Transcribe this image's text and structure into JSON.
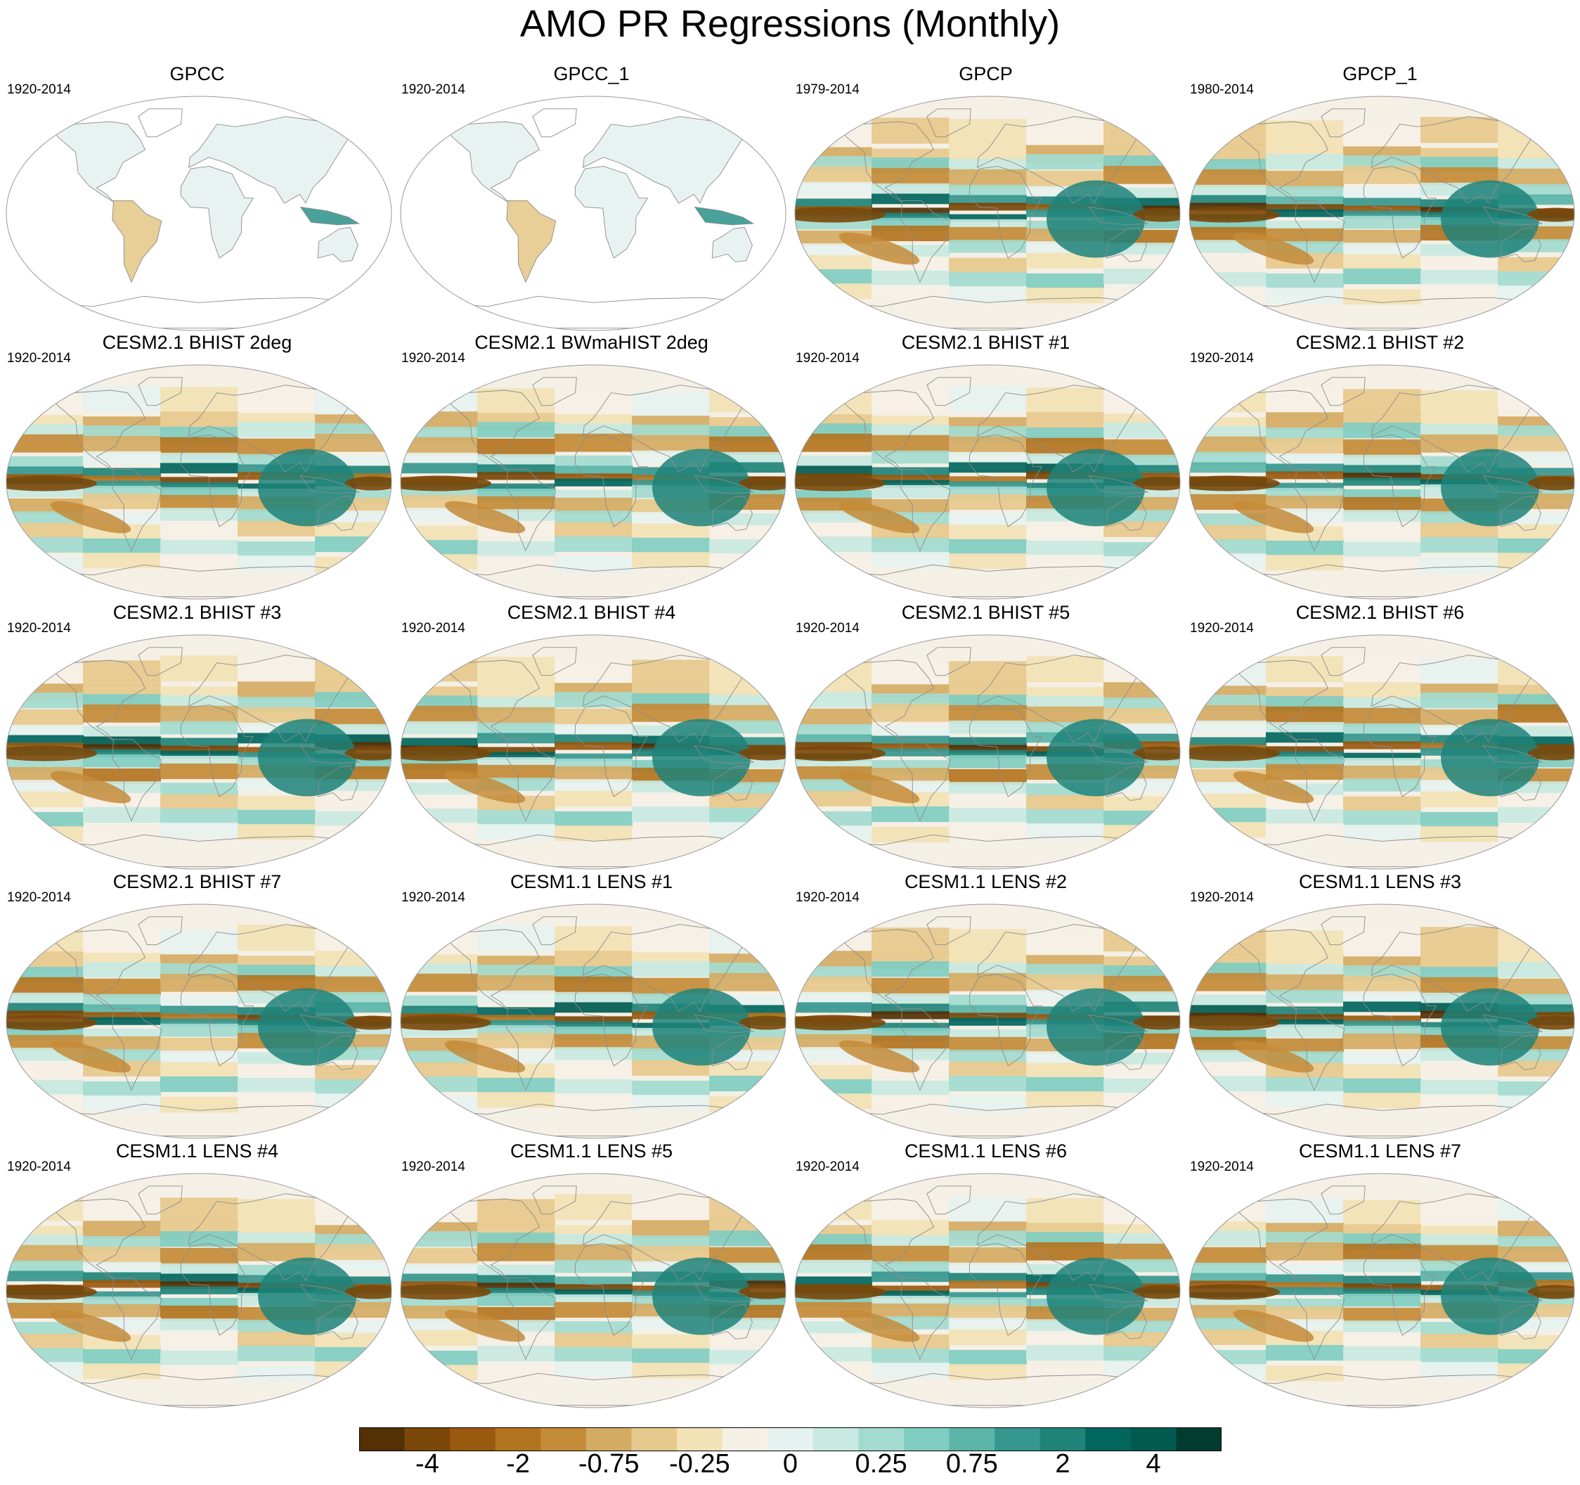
{
  "figure": {
    "title": "AMO PR Regressions (Monthly)"
  },
  "panels": [
    {
      "title": "GPCC",
      "years": "1920-2014",
      "kind": "land"
    },
    {
      "title": "GPCC_1",
      "years": "1920-2014",
      "kind": "land"
    },
    {
      "title": "GPCP",
      "years": "1979-2014",
      "kind": "full"
    },
    {
      "title": "GPCP_1",
      "years": "1980-2014",
      "kind": "full"
    },
    {
      "title": "CESM2.1 BHIST 2deg",
      "years": "1920-2014",
      "kind": "full"
    },
    {
      "title": "CESM2.1 BWmaHIST 2deg",
      "years": "1920-2014",
      "kind": "full"
    },
    {
      "title": "CESM2.1 BHIST #1",
      "years": "1920-2014",
      "kind": "full"
    },
    {
      "title": "CESM2.1 BHIST #2",
      "years": "1920-2014",
      "kind": "full"
    },
    {
      "title": "CESM2.1 BHIST #3",
      "years": "1920-2014",
      "kind": "full"
    },
    {
      "title": "CESM2.1 BHIST #4",
      "years": "1920-2014",
      "kind": "full"
    },
    {
      "title": "CESM2.1 BHIST #5",
      "years": "1920-2014",
      "kind": "full"
    },
    {
      "title": "CESM2.1 BHIST #6",
      "years": "1920-2014",
      "kind": "full"
    },
    {
      "title": "CESM2.1 BHIST #7",
      "years": "1920-2014",
      "kind": "full"
    },
    {
      "title": "CESM1.1 LENS #1",
      "years": "1920-2014",
      "kind": "full"
    },
    {
      "title": "CESM1.1 LENS #2",
      "years": "1920-2014",
      "kind": "full"
    },
    {
      "title": "CESM1.1 LENS #3",
      "years": "1920-2014",
      "kind": "full"
    },
    {
      "title": "CESM1.1 LENS #4",
      "years": "1920-2014",
      "kind": "full"
    },
    {
      "title": "CESM1.1 LENS #5",
      "years": "1920-2014",
      "kind": "full"
    },
    {
      "title": "CESM1.1 LENS #6",
      "years": "1920-2014",
      "kind": "full"
    },
    {
      "title": "CESM1.1 LENS #7",
      "years": "1920-2014",
      "kind": "full"
    }
  ],
  "colorbar": {
    "colors": [
      "#543005",
      "#7a4709",
      "#99590f",
      "#b3741f",
      "#c48b38",
      "#d4ab63",
      "#e6c98c",
      "#f2e2b5",
      "#f5f0e6",
      "#e6f2f0",
      "#c8e9e1",
      "#a3dbd0",
      "#80cdc1",
      "#5ab4a8",
      "#35978f",
      "#1f8379",
      "#01665e",
      "#015a50",
      "#003c30"
    ],
    "tick_labels": [
      "-4",
      "-2",
      "-0.75",
      "-0.25",
      "0",
      "0.25",
      "0.75",
      "2",
      "4"
    ],
    "tick_boundary_index": [
      2,
      4,
      6,
      8,
      10,
      12,
      14,
      16,
      18
    ]
  }
}
